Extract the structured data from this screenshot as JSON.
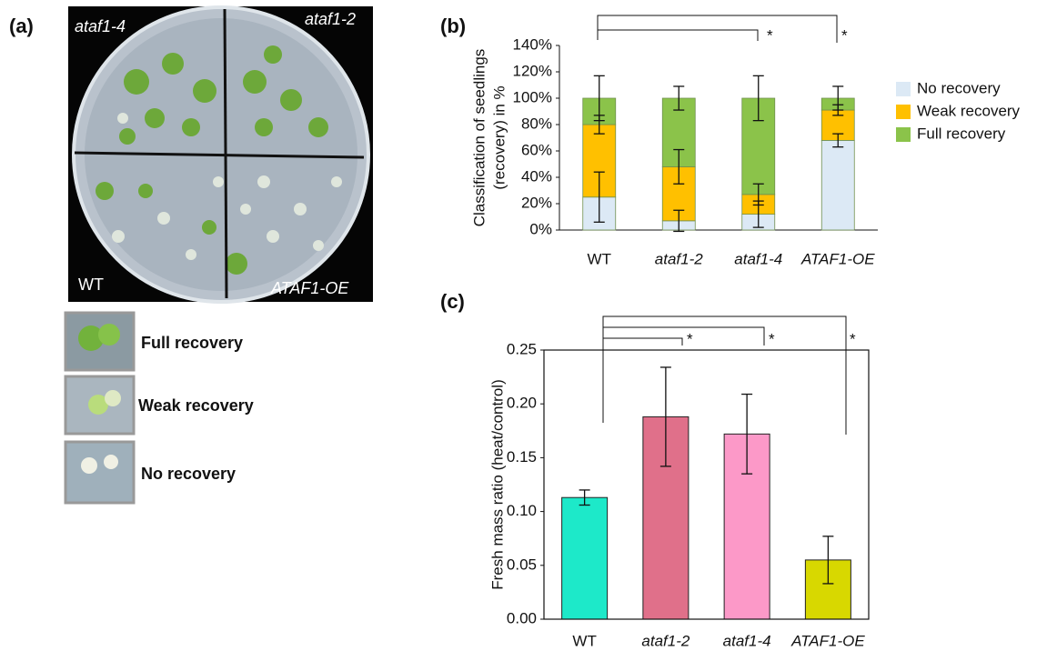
{
  "panel_labels": [
    "(a)",
    "(b)",
    "(c)"
  ],
  "photo": {
    "labels": [
      "ataf1-4",
      "ataf1-2",
      "WT",
      "ATAF1-OE"
    ],
    "legend": [
      "Full recovery",
      "Weak recovery",
      "No recovery"
    ]
  },
  "chart_data": [
    {
      "type": "stacked_bar",
      "y_label": [
        "Classification of seedlings",
        "(recovery) in %"
      ],
      "categories": [
        "WT",
        "ataf1-2",
        "ataf1-4",
        "ATAF1-OE"
      ],
      "series": [
        {
          "name": "No recovery",
          "color": "#dce9f5",
          "values": [
            25,
            7,
            12,
            68
          ],
          "errors": [
            19,
            8,
            10,
            5
          ]
        },
        {
          "name": "Weak recovery",
          "color": "#ffc000",
          "values": [
            55,
            41,
            15,
            23
          ],
          "errors": [
            7,
            13,
            8,
            4
          ]
        },
        {
          "name": "Full recovery",
          "color": "#8bc34a",
          "values": [
            20,
            52,
            73,
            9
          ],
          "errors": [
            17,
            9,
            17,
            9
          ]
        }
      ],
      "ylim": [
        0,
        140
      ],
      "yticks": [
        {
          "value": 0,
          "label": "0%"
        },
        {
          "value": 20,
          "label": "20%"
        },
        {
          "value": 40,
          "label": "40%"
        },
        {
          "value": 60,
          "label": "60%"
        },
        {
          "value": 80,
          "label": "80%"
        },
        {
          "value": 100,
          "label": "100%"
        },
        {
          "value": 120,
          "label": "120%"
        },
        {
          "value": 140,
          "label": "140%"
        }
      ],
      "significance": [
        "*",
        "*"
      ]
    },
    {
      "type": "bar",
      "y_label": [
        "Fresh mass ratio (heat/control)"
      ],
      "categories": [
        "WT",
        "ataf1-2",
        "ataf1-4",
        "ATAF1-OE"
      ],
      "values": [
        0.113,
        0.188,
        0.172,
        0.055
      ],
      "errors": [
        0.007,
        0.046,
        0.037,
        0.022
      ],
      "colors": [
        "#1de9c9",
        "#e0708a",
        "#fc99c8",
        "#d8d800"
      ],
      "ylim": [
        0,
        0.25
      ],
      "yticks": [
        {
          "value": 0,
          "label": "0.00"
        },
        {
          "value": 0.05,
          "label": "0.05"
        },
        {
          "value": 0.1,
          "label": "0.10"
        },
        {
          "value": 0.15,
          "label": "0.15"
        },
        {
          "value": 0.2,
          "label": "0.20"
        },
        {
          "value": 0.25,
          "label": "0.25"
        }
      ],
      "significance": [
        "*",
        "*",
        "*"
      ]
    }
  ]
}
